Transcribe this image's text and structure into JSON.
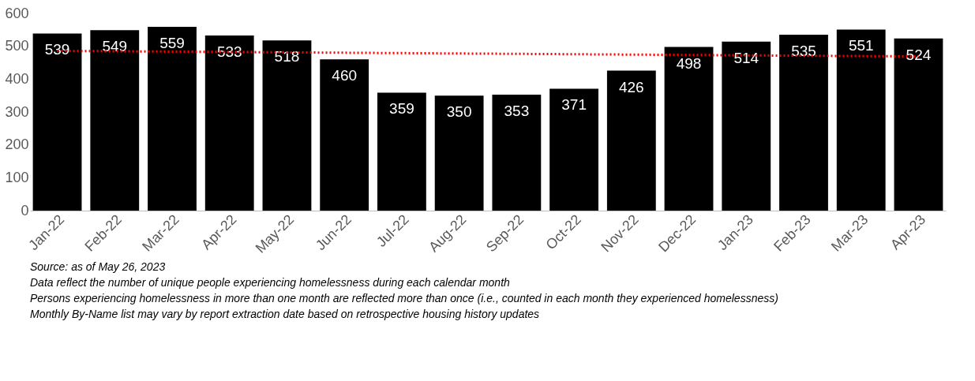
{
  "chart_data": {
    "type": "bar",
    "categories": [
      "Jan-22",
      "Feb-22",
      "Mar-22",
      "Apr-22",
      "May-22",
      "Jun-22",
      "Jul-22",
      "Aug-22",
      "Sep-22",
      "Oct-22",
      "Nov-22",
      "Dec-22",
      "Jan-23",
      "Feb-23",
      "Mar-23",
      "Apr-23"
    ],
    "series": [
      {
        "color": "#000000",
        "values": [
          539,
          549,
          559,
          533,
          518,
          460,
          359,
          350,
          353,
          371,
          426,
          498,
          514,
          535,
          551,
          524
        ],
        "value_labels": [
          "539",
          "549",
          "559",
          "533",
          "518",
          "460",
          "359",
          "350",
          "353",
          "371",
          "426",
          "498",
          "514",
          "535",
          "551",
          "524"
        ]
      },
      {
        "type": "line",
        "x": [
          "Jan-22",
          "Apr-23"
        ],
        "values": [
          486,
          469
        ],
        "color": "#ff0000",
        "line_style": "dotted"
      }
    ],
    "ylim": [
      0,
      600
    ],
    "yticks": [
      0,
      100,
      200,
      300,
      400,
      500,
      600
    ],
    "grid": false,
    "annotations": [
      "Source: as of May 26, 2023",
      "Data reflect the number of unique people experiencing homelessness during each calendar month",
      "Persons experiencing homelessness in more than one month are reflected more than once (i.e., counted in each month they experienced homelessness)",
      "Monthly By-Name list may vary by report extraction date based on retrospective housing history updates"
    ]
  }
}
